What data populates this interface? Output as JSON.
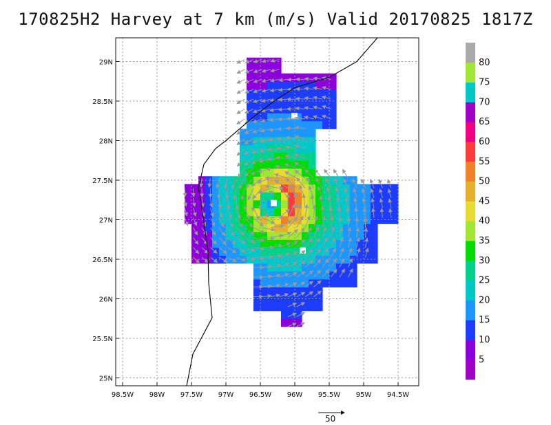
{
  "title": "170825H2 Harvey at 7 km (m/s) Valid 20170825 1817Z",
  "map": {
    "lon_range": [
      -98.6,
      -94.2
    ],
    "lat_range": [
      24.9,
      29.3
    ],
    "lon_ticks": [
      {
        "value": -98.5,
        "label": "98.5W"
      },
      {
        "value": -98.0,
        "label": "98W"
      },
      {
        "value": -97.5,
        "label": "97.5W"
      },
      {
        "value": -97.0,
        "label": "97W"
      },
      {
        "value": -96.5,
        "label": "96.5W"
      },
      {
        "value": -96.0,
        "label": "96W"
      },
      {
        "value": -95.5,
        "label": "95.5W"
      },
      {
        "value": -95.0,
        "label": "95W"
      },
      {
        "value": -94.5,
        "label": "94.5W"
      }
    ],
    "lat_ticks": [
      {
        "value": 29.0,
        "label": "29N"
      },
      {
        "value": 28.5,
        "label": "28.5N"
      },
      {
        "value": 28.0,
        "label": "28N"
      },
      {
        "value": 27.5,
        "label": "27.5N"
      },
      {
        "value": 27.0,
        "label": "27N"
      },
      {
        "value": 26.5,
        "label": "26.5N"
      },
      {
        "value": 26.0,
        "label": "26N"
      },
      {
        "value": 25.5,
        "label": "25.5N"
      },
      {
        "value": 25.0,
        "label": "25N"
      }
    ],
    "grid": true,
    "storm_center": {
      "lon": -96.32,
      "lat": 27.2
    },
    "coastline": [
      [
        -97.57,
        24.9
      ],
      [
        -97.48,
        25.3
      ],
      [
        -97.2,
        25.76
      ],
      [
        -97.25,
        26.2
      ],
      [
        -97.26,
        26.6
      ],
      [
        -97.36,
        27.2
      ],
      [
        -97.4,
        27.4
      ],
      [
        -97.32,
        27.7
      ],
      [
        -97.15,
        27.9
      ],
      [
        -97.0,
        28.0
      ],
      [
        -96.6,
        28.3
      ],
      [
        -96.3,
        28.5
      ],
      [
        -96.0,
        28.67
      ],
      [
        -95.5,
        28.8
      ],
      [
        -95.1,
        29.0
      ],
      [
        -94.8,
        29.3
      ]
    ]
  },
  "colorbar": {
    "labels": [
      "5",
      "10",
      "15",
      "20",
      "25",
      "30",
      "35",
      "40",
      "45",
      "50",
      "55",
      "60",
      "65",
      "70",
      "75",
      "80"
    ],
    "colors": [
      "#a000c8",
      "#8c00dc",
      "#1e3cff",
      "#1e96ff",
      "#00c8c8",
      "#00d28c",
      "#00dc00",
      "#a0e632",
      "#e6dc32",
      "#e6af2d",
      "#f08228",
      "#fa3c3c",
      "#f00082",
      "#a000c8",
      "#00c8c8",
      "#a0e632",
      "#aaaaaa"
    ]
  },
  "reference_vector": {
    "label": "50"
  }
}
